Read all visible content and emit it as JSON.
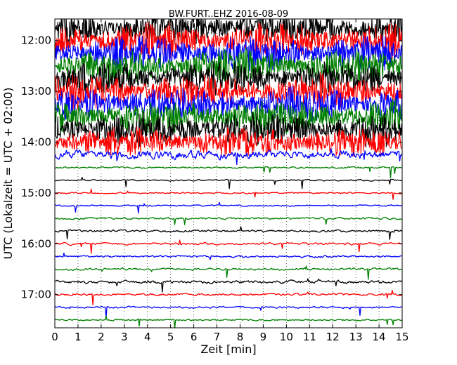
{
  "chart_data": {
    "type": "line",
    "title": "BW.FURT..EHZ 2016-08-09",
    "xlabel": "Zeit  [min]",
    "ylabel": "UTC (Lokalzeit = UTC + 02:00)",
    "xlim": [
      0,
      15
    ],
    "x_ticks": [
      "0",
      "1",
      "2",
      "3",
      "4",
      "5",
      "6",
      "7",
      "8",
      "9",
      "10",
      "11",
      "12",
      "13",
      "14",
      "15"
    ],
    "y_tick_labels": [
      "12:00",
      "13:00",
      "14:00",
      "15:00",
      "16:00",
      "17:00"
    ],
    "grid": true,
    "trace_interval_min": 15,
    "first_trace_utc": "11:45",
    "colors": [
      "#000000",
      "#ff0000",
      "#0000ff",
      "#008000"
    ],
    "traces": [
      {
        "start": "11:45",
        "color": "#000000",
        "amp": 3.0
      },
      {
        "start": "12:00",
        "color": "#ff0000",
        "amp": 3.0
      },
      {
        "start": "12:15",
        "color": "#0000ff",
        "amp": 3.0
      },
      {
        "start": "12:30",
        "color": "#008000",
        "amp": 3.0
      },
      {
        "start": "12:45",
        "color": "#000000",
        "amp": 3.0
      },
      {
        "start": "13:00",
        "color": "#ff0000",
        "amp": 3.0
      },
      {
        "start": "13:15",
        "color": "#0000ff",
        "amp": 3.0
      },
      {
        "start": "13:30",
        "color": "#008000",
        "amp": 3.0
      },
      {
        "start": "13:45",
        "color": "#000000",
        "amp": 3.0
      },
      {
        "start": "14:00",
        "color": "#ff0000",
        "amp": 2.6
      },
      {
        "start": "14:15",
        "color": "#0000ff",
        "amp": 0.6
      },
      {
        "start": "14:30",
        "color": "#008000",
        "amp": 0.12
      },
      {
        "start": "14:45",
        "color": "#000000",
        "amp": 0.1
      },
      {
        "start": "15:00",
        "color": "#ff0000",
        "amp": 0.1
      },
      {
        "start": "15:15",
        "color": "#0000ff",
        "amp": 0.1
      },
      {
        "start": "15:30",
        "color": "#008000",
        "amp": 0.15
      },
      {
        "start": "15:45",
        "color": "#000000",
        "amp": 0.15
      },
      {
        "start": "16:00",
        "color": "#ff0000",
        "amp": 0.15
      },
      {
        "start": "16:15",
        "color": "#0000ff",
        "amp": 0.15
      },
      {
        "start": "16:30",
        "color": "#008000",
        "amp": 0.15
      },
      {
        "start": "16:45",
        "color": "#000000",
        "amp": 0.2
      },
      {
        "start": "17:00",
        "color": "#ff0000",
        "amp": 0.15
      },
      {
        "start": "17:15",
        "color": "#0000ff",
        "amp": 0.12
      },
      {
        "start": "17:30",
        "color": "#008000",
        "amp": 0.12
      }
    ]
  }
}
